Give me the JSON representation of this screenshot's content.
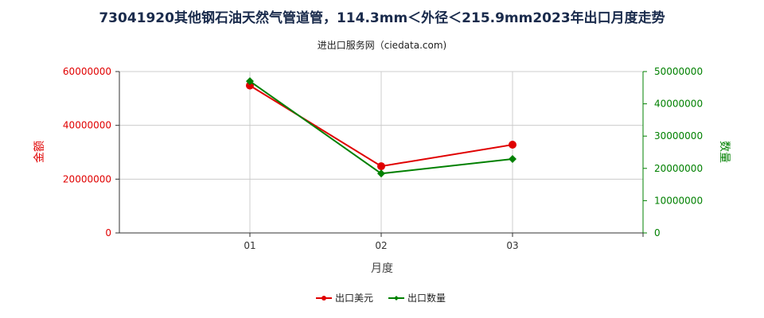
{
  "header": {
    "title": "73041920其他钢石油天然气管道管，114.3mm＜外径＜215.9mm2023年出口月度走势",
    "subtitle": "进出口服务网（ciedata.com)"
  },
  "colors": {
    "left_axis": "#e00000",
    "right_axis": "#008000",
    "grid": "#cccccc",
    "axis": "#333333"
  },
  "chart_data": {
    "type": "line",
    "title": "73041920其他钢石油天然气管道管，114.3mm＜外径＜215.9mm2023年出口月度走势",
    "subtitle": "进出口服务网（ciedata.com)",
    "xlabel": "月度",
    "ylabel_left": "金额",
    "ylabel_right": "数量",
    "categories": [
      "01",
      "02",
      "03"
    ],
    "left_axis": {
      "min": 0,
      "max": 60000000,
      "ticks": [
        "0",
        "20000000",
        "40000000",
        "60000000"
      ],
      "tick_values": [
        0,
        20000000,
        40000000,
        60000000
      ]
    },
    "right_axis": {
      "min": 0,
      "max": 50000000,
      "ticks": [
        "0",
        "10000000",
        "20000000",
        "30000000",
        "40000000",
        "50000000"
      ],
      "tick_values": [
        0,
        10000000,
        20000000,
        30000000,
        40000000,
        50000000
      ]
    },
    "series": [
      {
        "name": "出口美元",
        "axis": "left",
        "color": "#e00000",
        "marker": "circle",
        "values": [
          54800000,
          24800000,
          32800000
        ]
      },
      {
        "name": "出口数量",
        "axis": "right",
        "color": "#008000",
        "marker": "diamond",
        "values": [
          47000000,
          18400000,
          22900000
        ]
      }
    ],
    "grid": true,
    "legend_position": "bottom"
  }
}
